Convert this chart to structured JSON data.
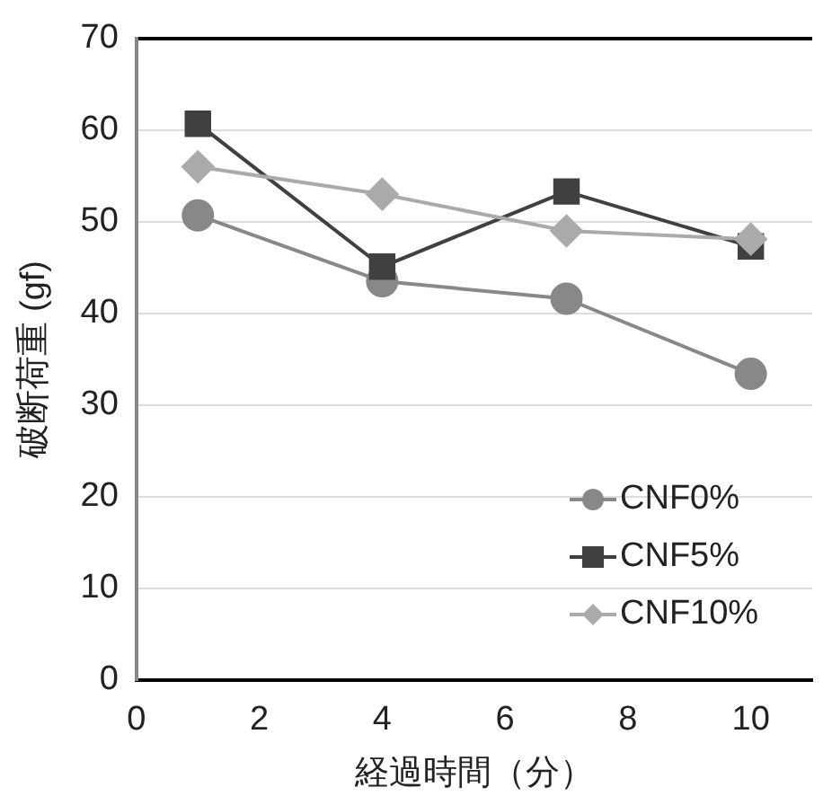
{
  "chart_data": {
    "type": "line",
    "xlabel": "経過時間（分）",
    "ylabel": "破断荷重 (gf)",
    "x": [
      1,
      4,
      7,
      10
    ],
    "series": [
      {
        "name": "CNF0%",
        "color": "#888888",
        "marker": "circle",
        "values": [
          50.7,
          43.5,
          41.6,
          33.4
        ]
      },
      {
        "name": "CNF5%",
        "color": "#404040",
        "marker": "square",
        "values": [
          60.7,
          45.1,
          53.3,
          47.3
        ]
      },
      {
        "name": "CNF10%",
        "color": "#aaaaaa",
        "marker": "diamond",
        "values": [
          56.0,
          53.0,
          49.0,
          48.1
        ]
      }
    ],
    "xlim": [
      0,
      11
    ],
    "xticks": [
      0,
      2,
      4,
      6,
      8,
      10
    ],
    "ylim": [
      0,
      70
    ],
    "yticks": [
      0,
      10,
      20,
      30,
      40,
      50,
      60,
      70
    ],
    "grid": "y",
    "legend": "bottom right"
  }
}
